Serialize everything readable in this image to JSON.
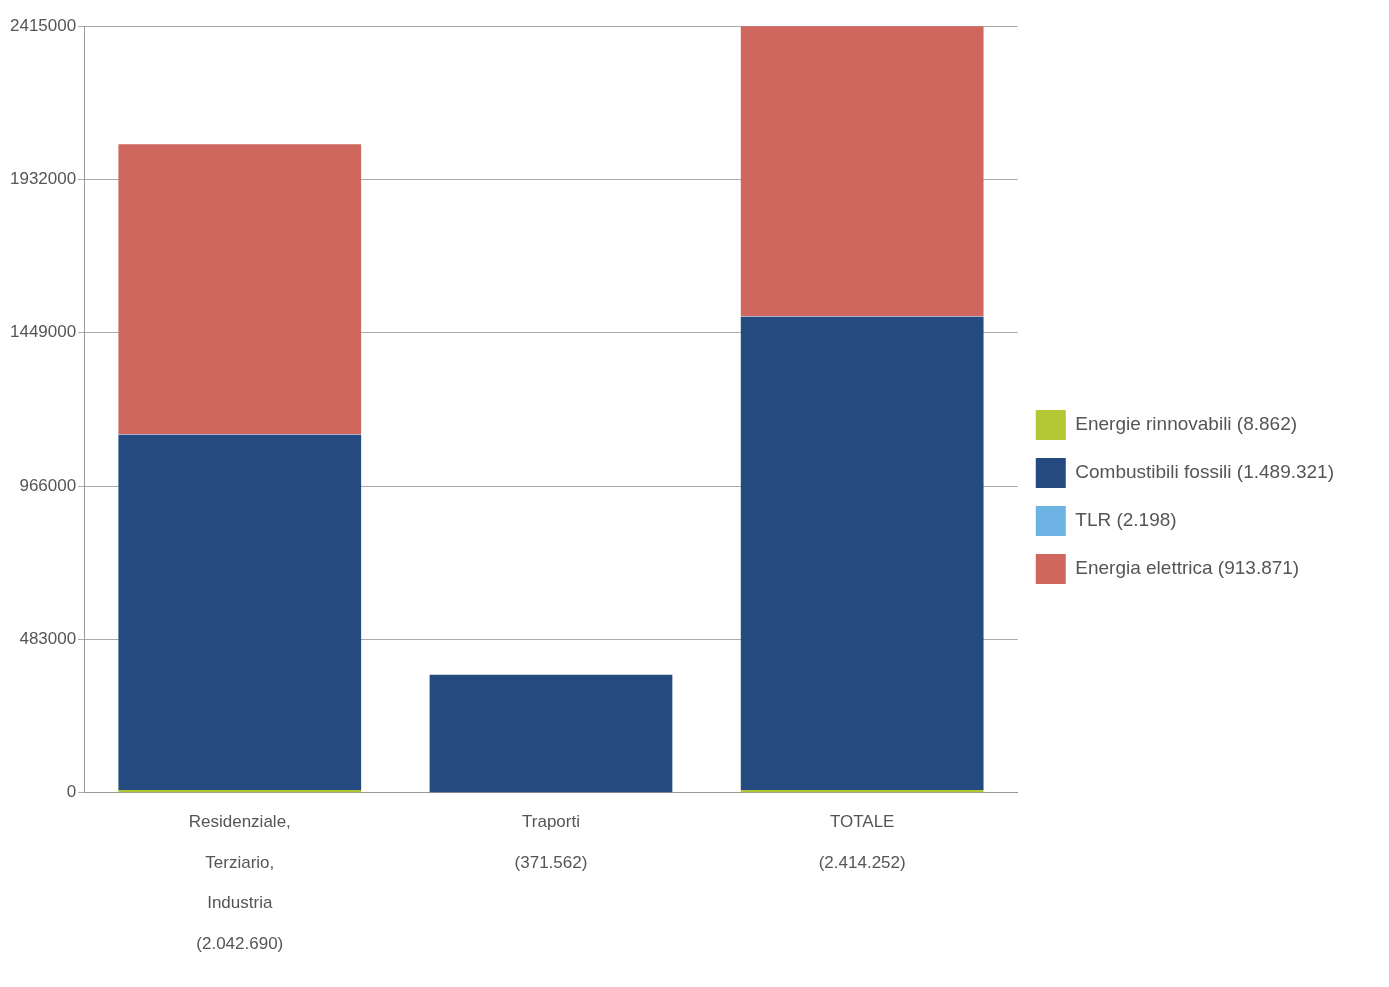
{
  "chart_data": {
    "type": "bar",
    "stacked": true,
    "categories": [
      "Residenziale, Terziario, Industria (2.042.690)",
      "Traporti (371.562)",
      "TOTALE (2.414.252)"
    ],
    "series": [
      {
        "name": "Energie rinnovabili (8.862)",
        "color": "#b3c735",
        "values": [
          8862,
          0,
          8862
        ]
      },
      {
        "name": "Combustibili fossili (1.489.321)",
        "color": "#244a80",
        "values": [
          1117759,
          371562,
          1489321
        ]
      },
      {
        "name": "TLR (2.198)",
        "color": "#6cb3e3",
        "values": [
          2198,
          0,
          2198
        ]
      },
      {
        "name": "Energia elettrica (913.871)",
        "color": "#d0675f",
        "values": [
          913871,
          0,
          913871
        ]
      }
    ],
    "ylim": [
      0,
      2415000
    ],
    "yticks": [
      0,
      483000,
      966000,
      1449000,
      1932000,
      2415000
    ],
    "grid": "y",
    "legend": "right"
  }
}
